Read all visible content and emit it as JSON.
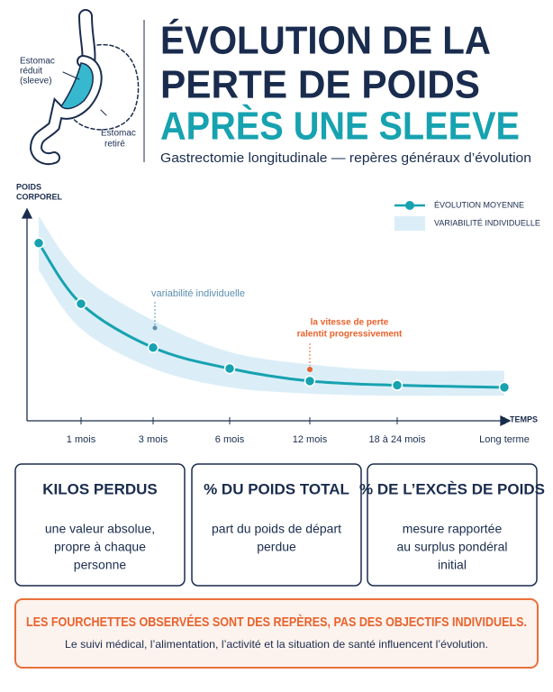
{
  "header": {
    "title_lines": [
      "ÉVOLUTION DE LA",
      "PERTE DE POIDS",
      "APRÈS UNE SLEEVE"
    ],
    "subtitle": "Gastrectomie longitudinale — repères généraux d’évolution",
    "illustration_labels": {
      "reduced": [
        "Estomac",
        "réduit",
        "(sleeve)"
      ],
      "removed": [
        "Estomac",
        "retiré"
      ]
    }
  },
  "chart_data": {
    "type": "line",
    "y_label": [
      "POIDS",
      "CORPOREL"
    ],
    "x_label": "TEMPS",
    "categories": [
      null,
      "1 mois",
      "3 mois",
      "6 mois",
      "12 mois",
      "18 à 24 mois",
      "Long terme"
    ],
    "series": [
      {
        "name": "ÉVOLUTION MOYENNE",
        "color": "#17a2b0",
        "values": [
          85,
          56,
          35,
          25,
          19,
          17,
          16
        ]
      }
    ],
    "band": {
      "name": "VARIABILITÉ INDIVIDUELLE",
      "color": "#dbeef8",
      "upper": [
        98,
        70,
        48,
        33,
        27,
        24,
        24
      ],
      "lower": [
        72,
        44,
        25,
        16,
        13,
        12,
        12
      ]
    },
    "ylim": [
      0,
      100
    ],
    "annotations": [
      {
        "text": [
          "variabilité individuelle"
        ],
        "color": "#5b8fb0"
      },
      {
        "text": [
          "la vitesse de perte",
          "ralentit progressivement"
        ],
        "color": "#e8622c"
      }
    ]
  },
  "cards": [
    {
      "title": "KILOS PERDUS",
      "text": [
        "une valeur absolue,",
        "propre à chaque",
        "personne"
      ]
    },
    {
      "title": "% DU POIDS TOTAL",
      "text": [
        "part du poids de départ",
        "perdue"
      ]
    },
    {
      "title": "% DE L’EXCÈS DE POIDS",
      "text": [
        "mesure rapportée",
        "au surplus pondéral",
        "initial"
      ]
    }
  ],
  "note": {
    "headline": "LES FOURCHETTES OBSERVÉES SONT DES REPÈRES, PAS DES OBJECTIFS INDIVIDUELS.",
    "text": "Le suivi médical, l’alimentation, l’activité et la situation de santé influencent l’évolution."
  }
}
